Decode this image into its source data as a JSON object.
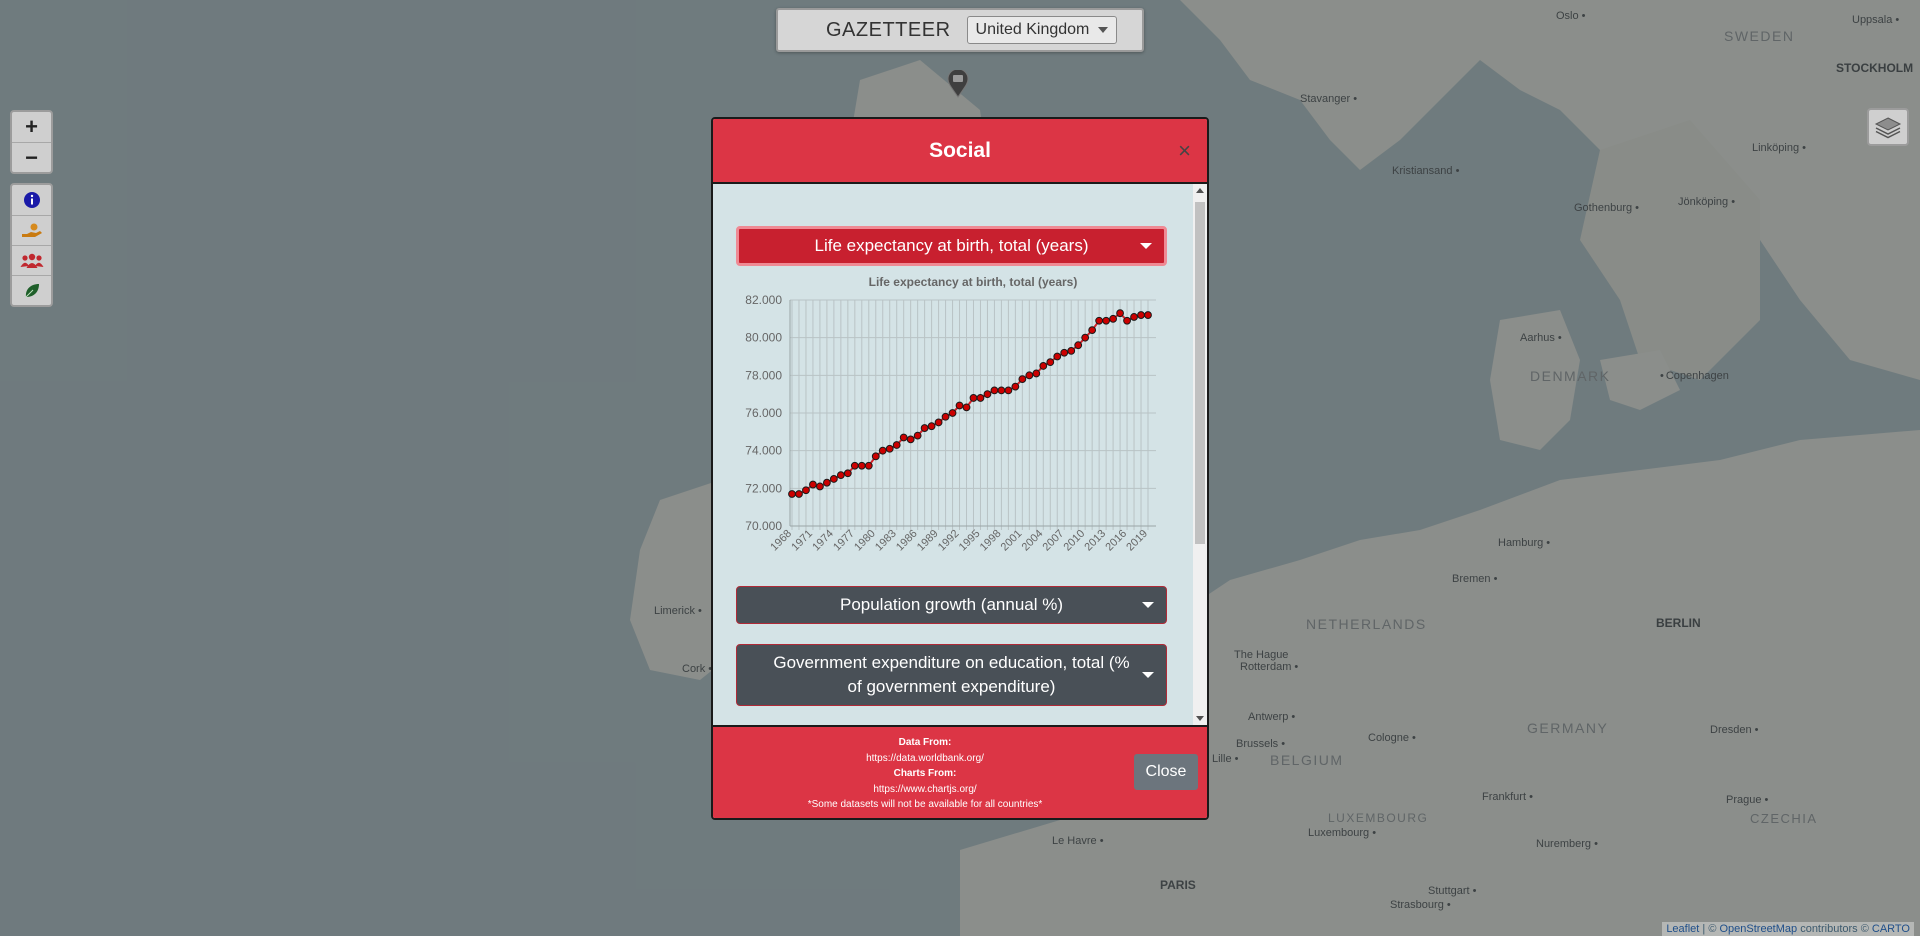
{
  "header": {
    "title": "GAZETTEER",
    "country_selected": "United Kingdom"
  },
  "zoom": {
    "in_label": "+",
    "out_label": "−"
  },
  "map_labels": {
    "countries": [
      "SWEDEN",
      "DENMARK",
      "NETHERLANDS",
      "BELGIUM",
      "GERMANY",
      "LUXEMBOURG",
      "CZECHIA"
    ],
    "capitals": [
      "STOCKHOLM",
      "BERLIN"
    ],
    "cities": [
      "Oslo",
      "Uppsala",
      "Stavanger",
      "Kristiansand",
      "Linköping",
      "Gothenburg",
      "Jönköping",
      "Aarhus",
      "Copenhagen",
      "Hamburg",
      "Bremen",
      "The Hague",
      "Rotterdam",
      "Antwerp",
      "Brussels",
      "Lille",
      "Cologne",
      "Frankfurt",
      "Dresden",
      "Prague",
      "Luxembourg",
      "Nuremberg",
      "Stuttgart",
      "Strasbourg",
      "Le Havre",
      "PARIS",
      "Limerick",
      "Cork"
    ]
  },
  "attribution": {
    "leaflet": "Leaflet",
    "sep": " | © ",
    "osm": "OpenStreetMap",
    "rest": " contributors © ",
    "carto": "CARTO"
  },
  "modal": {
    "title": "Social",
    "close_x": "×",
    "dropdowns": [
      "Life expectancy at birth, total (years)",
      "Population growth (annual %)",
      "Government expenditure on education, total (% of government expenditure)"
    ],
    "footer": {
      "data_from_label": "Data From:",
      "data_from_url": "https://data.worldbank.org/",
      "charts_from_label": "Charts From:",
      "charts_from_url": "https://www.chartjs.org/",
      "note": "*Some datasets will not be available for all countries*",
      "close_label": "Close"
    }
  },
  "colors": {
    "modal_red": "#dc3545",
    "active_dd": "#c8202f",
    "dark_dd": "#495057",
    "point_fill": "#cc0000"
  },
  "chart_data": {
    "type": "line",
    "title": "Life expectancy at birth, total (years)",
    "xlabel": "",
    "ylabel": "",
    "ylim": [
      70,
      82
    ],
    "yticks": [
      "70.000",
      "72.000",
      "74.000",
      "76.000",
      "78.000",
      "80.000",
      "82.000"
    ],
    "xtick_labels": [
      "1968",
      "1971",
      "1974",
      "1977",
      "1980",
      "1983",
      "1986",
      "1989",
      "1992",
      "1995",
      "1998",
      "2001",
      "2004",
      "2007",
      "2010",
      "2013",
      "2016",
      "2019"
    ],
    "x": [
      1968,
      1969,
      1970,
      1971,
      1972,
      1973,
      1974,
      1975,
      1976,
      1977,
      1978,
      1979,
      1980,
      1981,
      1982,
      1983,
      1984,
      1985,
      1986,
      1987,
      1988,
      1989,
      1990,
      1991,
      1992,
      1993,
      1994,
      1995,
      1996,
      1997,
      1998,
      1999,
      2000,
      2001,
      2002,
      2003,
      2004,
      2005,
      2006,
      2007,
      2008,
      2009,
      2010,
      2011,
      2012,
      2013,
      2014,
      2015,
      2016,
      2017,
      2018,
      2019
    ],
    "values": [
      71.7,
      71.7,
      71.9,
      72.2,
      72.1,
      72.3,
      72.5,
      72.7,
      72.8,
      73.2,
      73.2,
      73.2,
      73.7,
      74.0,
      74.1,
      74.3,
      74.7,
      74.6,
      74.8,
      75.2,
      75.3,
      75.5,
      75.8,
      76.0,
      76.4,
      76.3,
      76.8,
      76.8,
      77.0,
      77.2,
      77.2,
      77.2,
      77.4,
      77.8,
      78.0,
      78.1,
      78.5,
      78.7,
      79.0,
      79.2,
      79.3,
      79.6,
      80.0,
      80.4,
      80.9,
      80.9,
      81.0,
      81.3,
      80.9,
      81.1,
      81.2,
      81.2
    ]
  }
}
